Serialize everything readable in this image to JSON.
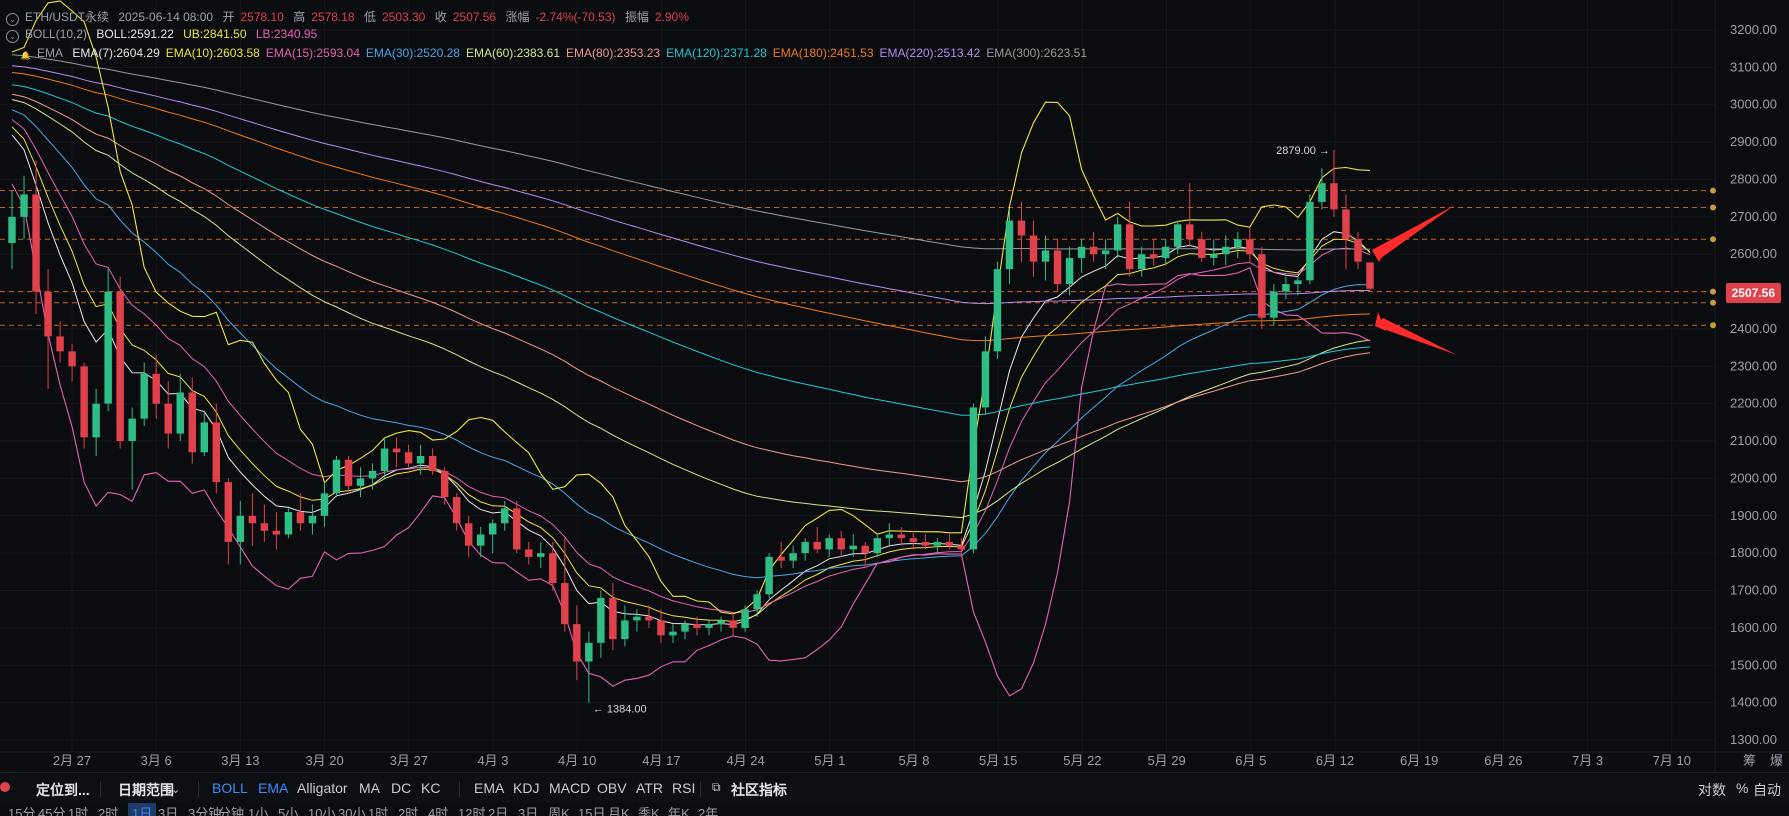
{
  "legend": {
    "symbol": "ETH/USDT永续",
    "date": "2025-06-14 08:00",
    "open_label": "开",
    "open": "2578.10",
    "high_label": "高",
    "high": "2578.18",
    "low_label": "低",
    "low": "2503.30",
    "close_label": "收",
    "close": "2507.56",
    "change_label": "涨幅",
    "change": "-2.74%(-70.53)",
    "amp_label": "振幅",
    "amp": "2.90%",
    "boll_name": "BOLL(10,2)",
    "boll_mid": "BOLL:2591.22",
    "boll_ub": "UB:2841.50",
    "boll_lb": "LB:2340.95",
    "ema_name": "EMA",
    "emas": [
      {
        "text": "EMA(7):2604.29",
        "color": "#e8e8e8"
      },
      {
        "text": "EMA(10):2603.58",
        "color": "#f0e442"
      },
      {
        "text": "EMA(15):2593.04",
        "color": "#e463b7"
      },
      {
        "text": "EMA(30):2520.28",
        "color": "#4aa8e8"
      },
      {
        "text": "EMA(60):2383.61",
        "color": "#d7e58b"
      },
      {
        "text": "EMA(80):2353.23",
        "color": "#f29a8e"
      },
      {
        "text": "EMA(120):2371.28",
        "color": "#22c9d6"
      },
      {
        "text": "EMA(180):2451.53",
        "color": "#f07a1a"
      },
      {
        "text": "EMA(220):2513.42",
        "color": "#b68cf2"
      },
      {
        "text": "EMA(300):2623.51",
        "color": "#9a9a9a"
      }
    ]
  },
  "current_price": "2507.56",
  "colors": {
    "down": "#e0414b",
    "up": "#2ebd85",
    "boll": "#f0e442",
    "boll_lb": "#e463b7",
    "arrow": "#ff2b2b"
  },
  "chart_data": {
    "type": "candlestick",
    "y_ticks": [
      1300,
      1400,
      1500,
      1600,
      1700,
      1800,
      1900,
      2000,
      2100,
      2200,
      2300,
      2400,
      2500,
      2600,
      2700,
      2800,
      2900,
      3000,
      3100,
      3200
    ],
    "y_tick_labels": [
      "1300.00",
      "1400.00",
      "1500.00",
      "1600.00",
      "1700.00",
      "1800.00",
      "1900.00",
      "2000.00",
      "2100.00",
      "2200.00",
      "2300.00",
      "2400.00",
      "2500.00",
      "2600.00",
      "2700.00",
      "2800.00",
      "2900.00",
      "3000.00",
      "3100.00",
      "3200.00"
    ],
    "ylim": [
      1300,
      3200
    ],
    "x_labels": [
      "2月 27",
      "3月 6",
      "3月 13",
      "3月 20",
      "3月 27",
      "4月 3",
      "4月 10",
      "4月 17",
      "4月 24",
      "5月 1",
      "5月 8",
      "5月 15",
      "5月 22",
      "5月 29",
      "6月 5",
      "6月 12",
      "6月 19",
      "6月 26",
      "7月 3",
      "7月 10"
    ],
    "annotations": [
      {
        "text": "2879.00 →",
        "price": 2879
      },
      {
        "text": "← 1384.00",
        "price": 1384
      }
    ],
    "horizontal_levels": [
      2770,
      2725,
      2640,
      2500,
      2470,
      2410
    ],
    "candles": [
      [
        2630,
        2770,
        2560,
        2700
      ],
      [
        2700,
        2810,
        2640,
        2760
      ],
      [
        2760,
        2850,
        2440,
        2500
      ],
      [
        2500,
        2560,
        2240,
        2380
      ],
      [
        2380,
        2420,
        2310,
        2340
      ],
      [
        2340,
        2360,
        2260,
        2300
      ],
      [
        2300,
        2310,
        2080,
        2110
      ],
      [
        2110,
        2240,
        2060,
        2200
      ],
      [
        2200,
        2560,
        2180,
        2500
      ],
      [
        2500,
        2540,
        2080,
        2100
      ],
      [
        2100,
        2190,
        1970,
        2160
      ],
      [
        2160,
        2310,
        2140,
        2280
      ],
      [
        2280,
        2330,
        2160,
        2200
      ],
      [
        2200,
        2260,
        2080,
        2120
      ],
      [
        2120,
        2280,
        2100,
        2230
      ],
      [
        2230,
        2270,
        2040,
        2070
      ],
      [
        2070,
        2180,
        2060,
        2150
      ],
      [
        2150,
        2200,
        1960,
        1990
      ],
      [
        1990,
        2000,
        1770,
        1830
      ],
      [
        1830,
        1940,
        1770,
        1900
      ],
      [
        1900,
        1960,
        1820,
        1880
      ],
      [
        1880,
        1930,
        1830,
        1860
      ],
      [
        1860,
        1910,
        1810,
        1850
      ],
      [
        1850,
        1920,
        1840,
        1910
      ],
      [
        1910,
        1960,
        1860,
        1880
      ],
      [
        1880,
        1930,
        1850,
        1900
      ],
      [
        1900,
        1990,
        1870,
        1960
      ],
      [
        1960,
        2060,
        1950,
        2050
      ],
      [
        2050,
        2060,
        1960,
        1980
      ],
      [
        1980,
        2030,
        1950,
        2000
      ],
      [
        2000,
        2040,
        1970,
        2020
      ],
      [
        2020,
        2110,
        2000,
        2080
      ],
      [
        2080,
        2110,
        2030,
        2070
      ],
      [
        2070,
        2090,
        2030,
        2040
      ],
      [
        2040,
        2090,
        2010,
        2060
      ],
      [
        2060,
        2080,
        2010,
        2020
      ],
      [
        2020,
        2030,
        1930,
        1950
      ],
      [
        1950,
        1960,
        1860,
        1880
      ],
      [
        1880,
        1900,
        1790,
        1820
      ],
      [
        1820,
        1870,
        1790,
        1850
      ],
      [
        1850,
        1890,
        1800,
        1880
      ],
      [
        1880,
        1940,
        1860,
        1920
      ],
      [
        1920,
        1940,
        1800,
        1810
      ],
      [
        1810,
        1830,
        1770,
        1790
      ],
      [
        1790,
        1830,
        1760,
        1800
      ],
      [
        1800,
        1830,
        1700,
        1720
      ],
      [
        1720,
        1840,
        1590,
        1610
      ],
      [
        1610,
        1660,
        1460,
        1510
      ],
      [
        1510,
        1590,
        1400,
        1560
      ],
      [
        1560,
        1700,
        1520,
        1680
      ],
      [
        1680,
        1720,
        1540,
        1570
      ],
      [
        1570,
        1660,
        1550,
        1620
      ],
      [
        1620,
        1650,
        1590,
        1630
      ],
      [
        1630,
        1660,
        1600,
        1620
      ],
      [
        1620,
        1650,
        1560,
        1580
      ],
      [
        1580,
        1610,
        1560,
        1590
      ],
      [
        1590,
        1620,
        1570,
        1610
      ],
      [
        1610,
        1630,
        1580,
        1600
      ],
      [
        1600,
        1620,
        1580,
        1610
      ],
      [
        1610,
        1630,
        1590,
        1620
      ],
      [
        1620,
        1640,
        1580,
        1600
      ],
      [
        1600,
        1660,
        1590,
        1650
      ],
      [
        1650,
        1700,
        1630,
        1690
      ],
      [
        1690,
        1800,
        1680,
        1790
      ],
      [
        1790,
        1830,
        1760,
        1780
      ],
      [
        1780,
        1820,
        1760,
        1800
      ],
      [
        1800,
        1840,
        1780,
        1830
      ],
      [
        1830,
        1870,
        1800,
        1810
      ],
      [
        1810,
        1850,
        1790,
        1840
      ],
      [
        1840,
        1860,
        1790,
        1810
      ],
      [
        1810,
        1850,
        1790,
        1820
      ],
      [
        1820,
        1830,
        1760,
        1800
      ],
      [
        1800,
        1850,
        1790,
        1840
      ],
      [
        1840,
        1880,
        1820,
        1850
      ],
      [
        1850,
        1870,
        1820,
        1840
      ],
      [
        1840,
        1860,
        1810,
        1830
      ],
      [
        1830,
        1850,
        1810,
        1820
      ],
      [
        1820,
        1840,
        1800,
        1830
      ],
      [
        1830,
        1850,
        1810,
        1820
      ],
      [
        1820,
        1840,
        1790,
        1810
      ],
      [
        1810,
        2200,
        1800,
        2190
      ],
      [
        2190,
        2380,
        2170,
        2340
      ],
      [
        2340,
        2580,
        2320,
        2560
      ],
      [
        2560,
        2720,
        2520,
        2690
      ],
      [
        2690,
        2740,
        2580,
        2650
      ],
      [
        2650,
        2690,
        2540,
        2580
      ],
      [
        2580,
        2650,
        2530,
        2610
      ],
      [
        2610,
        2640,
        2500,
        2520
      ],
      [
        2520,
        2620,
        2490,
        2590
      ],
      [
        2590,
        2640,
        2550,
        2620
      ],
      [
        2620,
        2660,
        2580,
        2600
      ],
      [
        2600,
        2640,
        2560,
        2610
      ],
      [
        2610,
        2700,
        2590,
        2680
      ],
      [
        2680,
        2740,
        2540,
        2560
      ],
      [
        2560,
        2620,
        2540,
        2600
      ],
      [
        2600,
        2640,
        2570,
        2590
      ],
      [
        2590,
        2640,
        2570,
        2620
      ],
      [
        2620,
        2690,
        2600,
        2680
      ],
      [
        2680,
        2790,
        2620,
        2640
      ],
      [
        2640,
        2660,
        2580,
        2590
      ],
      [
        2590,
        2640,
        2570,
        2600
      ],
      [
        2600,
        2650,
        2570,
        2620
      ],
      [
        2620,
        2660,
        2590,
        2640
      ],
      [
        2640,
        2670,
        2580,
        2600
      ],
      [
        2600,
        2620,
        2400,
        2430
      ],
      [
        2430,
        2520,
        2410,
        2500
      ],
      [
        2500,
        2540,
        2480,
        2520
      ],
      [
        2520,
        2540,
        2490,
        2530
      ],
      [
        2530,
        2760,
        2520,
        2740
      ],
      [
        2740,
        2830,
        2720,
        2790
      ],
      [
        2790,
        2879,
        2700,
        2720
      ],
      [
        2720,
        2760,
        2560,
        2640
      ],
      [
        2640,
        2660,
        2560,
        2580
      ],
      [
        2578.1,
        2578.18,
        2503.3,
        2507.56
      ]
    ]
  },
  "toolbar": {
    "locate": "定位到...",
    "date_range": "日期范围",
    "indicators": [
      "BOLL",
      "EMA",
      "Alligator",
      "MA",
      "DC",
      "KC"
    ],
    "sub_indicators": [
      "EMA",
      "KDJ",
      "MACD",
      "OBV",
      "ATR",
      "RSI"
    ],
    "community": "社区指标",
    "scale_log": "对数",
    "scale_pct": "%",
    "scale_auto": "自动"
  },
  "timeframes": [
    "15分",
    "45分",
    "1时",
    "2时",
    "1日",
    "3日",
    "3分钟",
    "分钟",
    "1小",
    "5小",
    "10小",
    "30小",
    "1时",
    "2时",
    "4时",
    "12时",
    "2日",
    "3日",
    "周K",
    "15日",
    "月K",
    "季K",
    "年K",
    "2年"
  ],
  "right_corner": [
    "筹",
    "爆"
  ]
}
